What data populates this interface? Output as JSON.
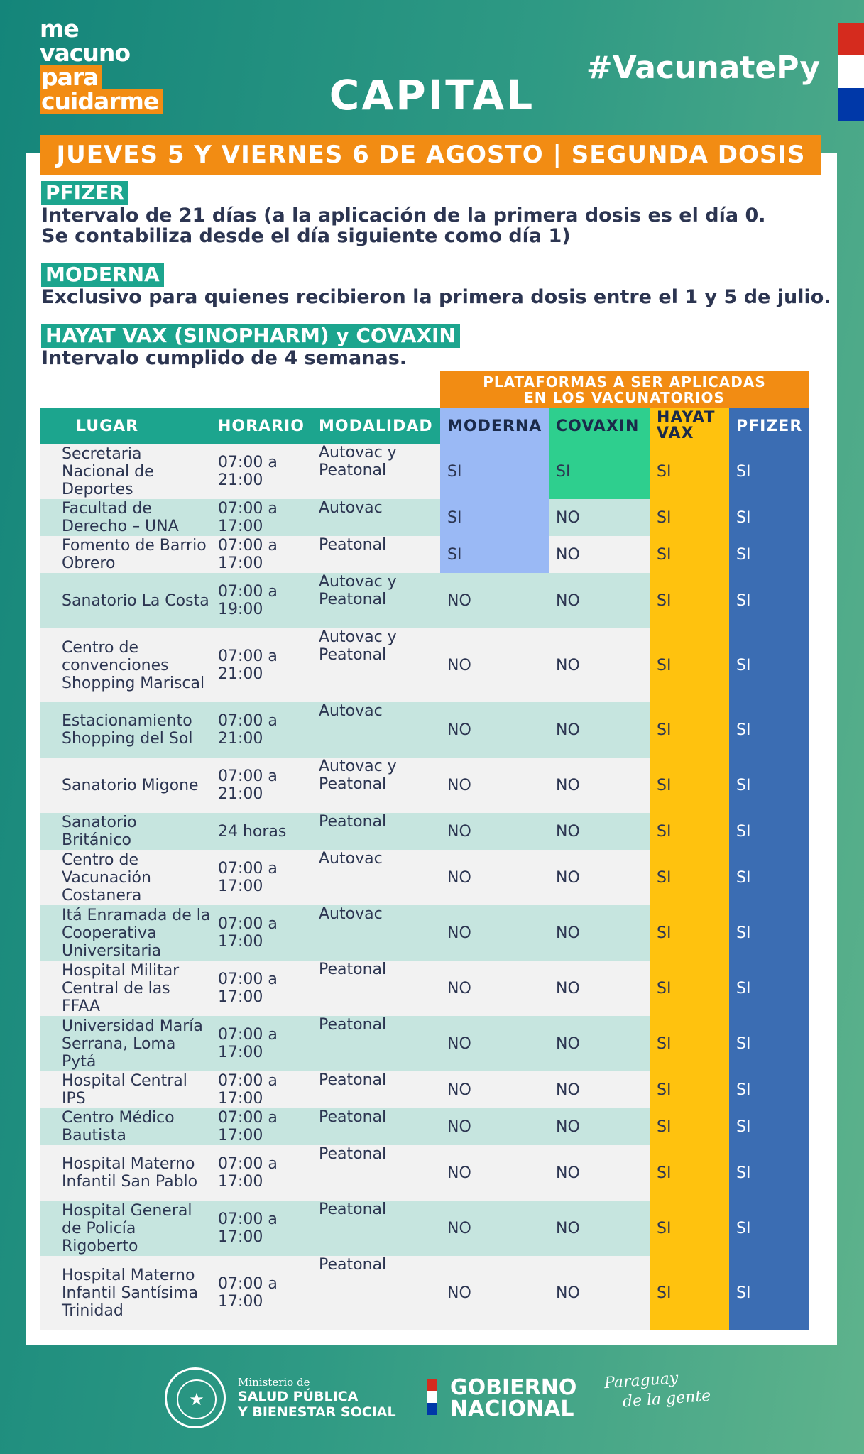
{
  "logo": {
    "line1": "me",
    "line2": "vacuno",
    "line3": "para",
    "line4": "cuidarme"
  },
  "title": "CAPITAL",
  "hashtag": "#VacunatePy",
  "date_banner": "JUEVES 5 Y VIERNES 6 DE AGOSTO | SEGUNDA DOSIS",
  "vaccines": [
    {
      "name": "PFIZER",
      "text1": "Intervalo de 21 días (a la aplicación de la primera dosis es el día 0.",
      "text2": "Se contabiliza desde el día siguiente como día 1)"
    },
    {
      "name": "MODERNA",
      "text1": "Exclusivo para quienes recibieron la primera dosis entre el 1 y 5 de julio."
    },
    {
      "name": "HAYAT VAX (SINOPHARM) y COVAXIN",
      "text1": "Intervalo cumplido de 4 semanas."
    }
  ],
  "platforms_header": {
    "line1": "PLATAFORMAS A SER APLICADAS",
    "line2": "EN LOS VACUNATORIOS"
  },
  "table": {
    "headers": {
      "lugar": "LUGAR",
      "horario": "HORARIO",
      "modalidad": "MODALIDAD",
      "moderna": "MODERNA",
      "covaxin": "COVAXIN",
      "hayat1": "HAYAT",
      "hayat2": "VAX",
      "pfizer": "PFIZER"
    },
    "rows": [
      {
        "lugar": "Secretaria Nacional de Deportes",
        "horario": "07:00 a 21:00",
        "modalidad": "Autovac y Peatonal",
        "moderna": "SI",
        "covaxin": "SI",
        "hayat": "SI",
        "pfizer": "SI"
      },
      {
        "lugar": "Facultad de Derecho – UNA",
        "horario": "07:00 a 17:00",
        "modalidad": "Autovac",
        "moderna": "SI",
        "covaxin": "NO",
        "hayat": "SI",
        "pfizer": "SI"
      },
      {
        "lugar": "Fomento de Barrio Obrero",
        "horario": "07:00 a 17:00",
        "modalidad": "Peatonal",
        "moderna": "SI",
        "covaxin": "NO",
        "hayat": "SI",
        "pfizer": "SI"
      },
      {
        "lugar": "Sanatorio La Costa",
        "horario": "07:00 a 19:00",
        "modalidad": "Autovac y Peatonal",
        "moderna": "NO",
        "covaxin": "NO",
        "hayat": "SI",
        "pfizer": "SI"
      },
      {
        "lugar": "Centro de convenciones Shopping Mariscal",
        "horario": "07:00 a 21:00",
        "modalidad": "Autovac y Peatonal",
        "moderna": "NO",
        "covaxin": "NO",
        "hayat": "SI",
        "pfizer": "SI"
      },
      {
        "lugar": "Estacionamiento Shopping del Sol",
        "horario": "07:00 a 21:00",
        "modalidad": "Autovac",
        "moderna": "NO",
        "covaxin": "NO",
        "hayat": "SI",
        "pfizer": "SI"
      },
      {
        "lugar": "Sanatorio Migone",
        "horario": "07:00 a 21:00",
        "modalidad": "Autovac y Peatonal",
        "moderna": "NO",
        "covaxin": "NO",
        "hayat": "SI",
        "pfizer": "SI"
      },
      {
        "lugar": "Sanatorio Británico",
        "horario": "24 horas",
        "modalidad": "Peatonal",
        "moderna": "NO",
        "covaxin": "NO",
        "hayat": "SI",
        "pfizer": "SI"
      },
      {
        "lugar": "Centro de Vacunación Costanera",
        "horario": "07:00 a 17:00",
        "modalidad": "Autovac",
        "moderna": "NO",
        "covaxin": "NO",
        "hayat": "SI",
        "pfizer": "SI"
      },
      {
        "lugar": "Itá Enramada de la Cooperativa Universitaria",
        "horario": "07:00 a 17:00",
        "modalidad": "Autovac",
        "moderna": "NO",
        "covaxin": "NO",
        "hayat": "SI",
        "pfizer": "SI"
      },
      {
        "lugar": "Hospital Militar Central de las FFAA",
        "horario": "07:00 a 17:00",
        "modalidad": "Peatonal",
        "moderna": "NO",
        "covaxin": "NO",
        "hayat": "SI",
        "pfizer": "SI"
      },
      {
        "lugar": "Universidad María Serrana, Loma Pytá",
        "horario": "07:00 a 17:00",
        "modalidad": "Peatonal",
        "moderna": "NO",
        "covaxin": "NO",
        "hayat": "SI",
        "pfizer": "SI"
      },
      {
        "lugar": "Hospital Central IPS",
        "horario": "07:00 a 17:00",
        "modalidad": "Peatonal",
        "moderna": "NO",
        "covaxin": "NO",
        "hayat": "SI",
        "pfizer": "SI"
      },
      {
        "lugar": "Centro Médico Bautista",
        "horario": "07:00 a 17:00",
        "modalidad": "Peatonal",
        "moderna": "NO",
        "covaxin": "NO",
        "hayat": "SI",
        "pfizer": "SI"
      },
      {
        "lugar": "Hospital Materno Infantil San Pablo",
        "horario": "07:00 a 17:00",
        "modalidad": "Peatonal",
        "moderna": "NO",
        "covaxin": "NO",
        "hayat": "SI",
        "pfizer": "SI"
      },
      {
        "lugar": "Hospital General de Policía Rigoberto",
        "horario": "07:00 a 17:00",
        "modalidad": "Peatonal",
        "moderna": "NO",
        "covaxin": "NO",
        "hayat": "SI",
        "pfizer": "SI"
      },
      {
        "lugar": "Hospital Materno Infantil Santísima Trinidad",
        "horario": "07:00 a 17:00",
        "modalidad": "Peatonal",
        "moderna": "NO",
        "covaxin": "NO",
        "hayat": "SI",
        "pfizer": "SI"
      }
    ]
  },
  "footer": {
    "ministry_small": "Ministerio de",
    "ministry_line1": "SALUD PÚBLICA",
    "ministry_line2": "Y BIENESTAR SOCIAL",
    "gob_line1": "GOBIERNO",
    "gob_line2": "NACIONAL",
    "slogan_line1": "Paraguay",
    "slogan_line2": "de la gente",
    "seal_icon": "national-seal-icon"
  },
  "colors": {
    "teal": "#1ca58e",
    "orange": "#f28c13",
    "moderna_si": "#9ab9f5",
    "covaxin_si": "#2ecf8e",
    "hayat": "#ffc20e",
    "pfizer": "#3b6db3",
    "row_even": "#c6e5df",
    "row_odd": "#f2f2f2",
    "text": "#2c3551",
    "flag_red": "#d52b1e",
    "flag_blue": "#0038a8"
  }
}
